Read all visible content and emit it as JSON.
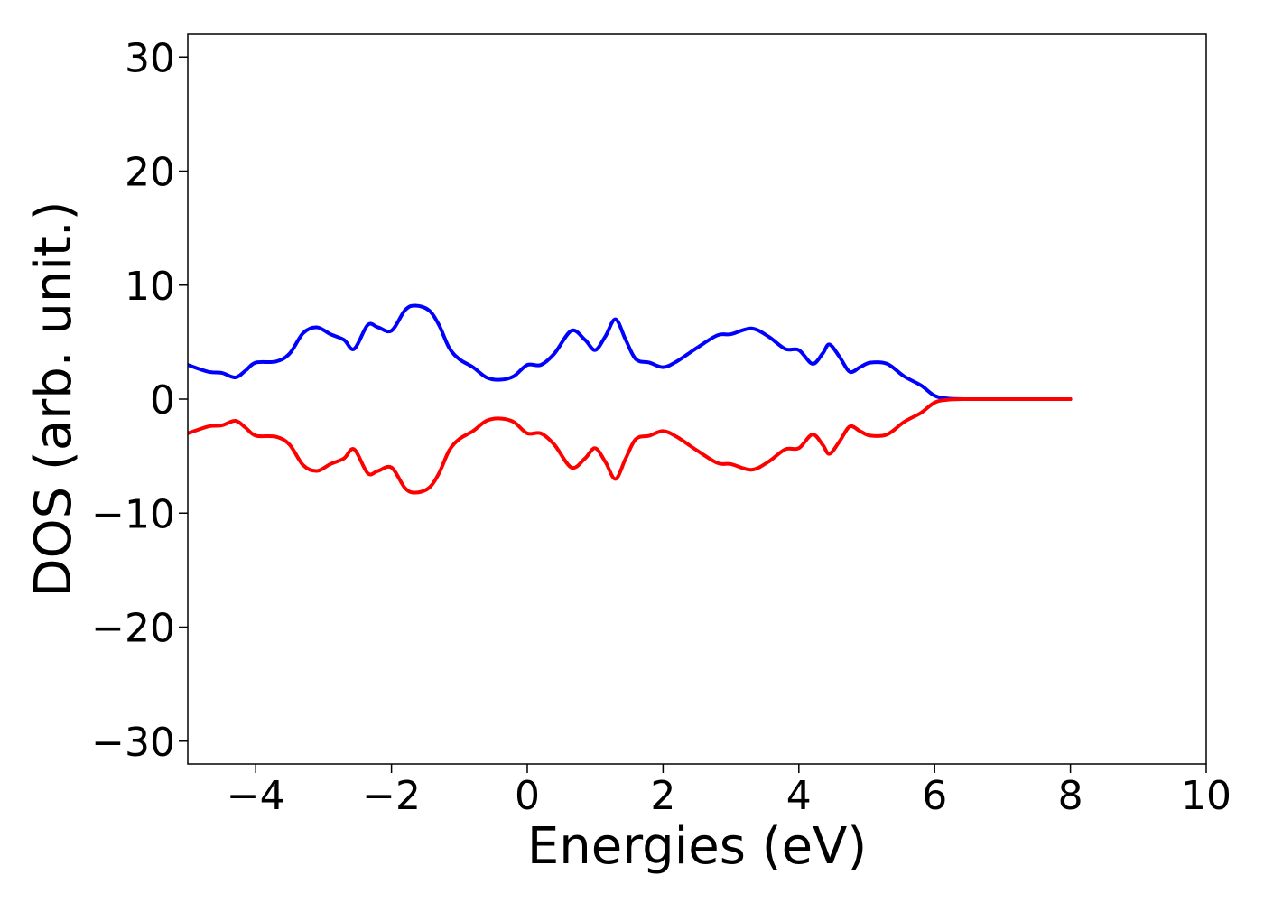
{
  "chart_data": {
    "type": "line",
    "title": "",
    "xlabel": "Energies (eV)",
    "ylabel": "DOS (arb. unit.)",
    "xlim": [
      -5,
      10
    ],
    "ylim": [
      -32,
      32
    ],
    "x_ticks": [
      -4,
      -2,
      0,
      2,
      4,
      6,
      8,
      10
    ],
    "x_tick_labels": [
      "−4",
      "−2",
      "0",
      "2",
      "4",
      "6",
      "8",
      "10"
    ],
    "y_ticks": [
      30,
      20,
      10,
      0,
      -10,
      -20,
      -30
    ],
    "y_tick_labels": [
      "30",
      "20",
      "10",
      "0",
      "−10",
      "−20",
      "−30"
    ],
    "grid": false,
    "legend": "none",
    "series": [
      {
        "color": "#0000ff",
        "x": [
          -5.0,
          -4.7,
          -4.5,
          -4.3,
          -4.15,
          -4.0,
          -3.7,
          -3.5,
          -3.3,
          -3.1,
          -2.9,
          -2.7,
          -2.55,
          -2.35,
          -2.2,
          -2.0,
          -1.8,
          -1.65,
          -1.45,
          -1.3,
          -1.15,
          -1.0,
          -0.8,
          -0.6,
          -0.4,
          -0.2,
          0.0,
          0.2,
          0.4,
          0.65,
          0.85,
          1.0,
          1.15,
          1.3,
          1.45,
          1.6,
          1.8,
          2.0,
          2.2,
          2.5,
          2.8,
          3.0,
          3.3,
          3.55,
          3.8,
          4.0,
          4.2,
          4.35,
          4.45,
          4.6,
          4.75,
          4.9,
          5.05,
          5.3,
          5.55,
          5.8,
          6.0,
          6.2,
          6.5,
          7.0,
          7.5,
          8.0
        ],
        "y": [
          3.0,
          2.4,
          2.3,
          1.9,
          2.5,
          3.2,
          3.3,
          4.0,
          5.8,
          6.3,
          5.7,
          5.2,
          4.4,
          6.5,
          6.3,
          6.0,
          7.8,
          8.2,
          7.8,
          6.5,
          4.5,
          3.5,
          2.8,
          1.9,
          1.7,
          2.0,
          3.0,
          3.0,
          4.0,
          6.0,
          5.2,
          4.3,
          5.5,
          7.0,
          5.2,
          3.5,
          3.2,
          2.8,
          3.3,
          4.5,
          5.6,
          5.7,
          6.2,
          5.5,
          4.4,
          4.3,
          3.1,
          4.0,
          4.8,
          3.7,
          2.4,
          2.8,
          3.2,
          3.1,
          2.0,
          1.2,
          0.3,
          0.05,
          0.0,
          0.0,
          0.0,
          0.0
        ]
      },
      {
        "color": "#ff0000",
        "x": [
          -5.0,
          -4.7,
          -4.5,
          -4.3,
          -4.15,
          -4.0,
          -3.7,
          -3.5,
          -3.3,
          -3.1,
          -2.9,
          -2.7,
          -2.55,
          -2.35,
          -2.2,
          -2.0,
          -1.8,
          -1.65,
          -1.45,
          -1.3,
          -1.15,
          -1.0,
          -0.8,
          -0.6,
          -0.4,
          -0.2,
          0.0,
          0.2,
          0.4,
          0.65,
          0.85,
          1.0,
          1.15,
          1.3,
          1.45,
          1.6,
          1.8,
          2.0,
          2.2,
          2.5,
          2.8,
          3.0,
          3.3,
          3.55,
          3.8,
          4.0,
          4.2,
          4.35,
          4.45,
          4.6,
          4.75,
          4.9,
          5.05,
          5.3,
          5.55,
          5.8,
          6.0,
          6.2,
          6.5,
          7.0,
          7.5,
          8.0
        ],
        "y": [
          -3.0,
          -2.4,
          -2.3,
          -1.9,
          -2.5,
          -3.2,
          -3.3,
          -4.0,
          -5.8,
          -6.3,
          -5.7,
          -5.2,
          -4.4,
          -6.5,
          -6.3,
          -6.0,
          -7.8,
          -8.2,
          -7.8,
          -6.5,
          -4.5,
          -3.5,
          -2.8,
          -1.9,
          -1.7,
          -2.0,
          -3.0,
          -3.0,
          -4.0,
          -6.0,
          -5.2,
          -4.3,
          -5.5,
          -7.0,
          -5.2,
          -3.5,
          -3.2,
          -2.8,
          -3.3,
          -4.5,
          -5.6,
          -5.7,
          -6.2,
          -5.5,
          -4.4,
          -4.3,
          -3.1,
          -4.0,
          -4.8,
          -3.7,
          -2.4,
          -2.8,
          -3.2,
          -3.1,
          -2.0,
          -1.2,
          -0.3,
          -0.05,
          0.0,
          0.0,
          0.0,
          0.0
        ]
      }
    ]
  }
}
